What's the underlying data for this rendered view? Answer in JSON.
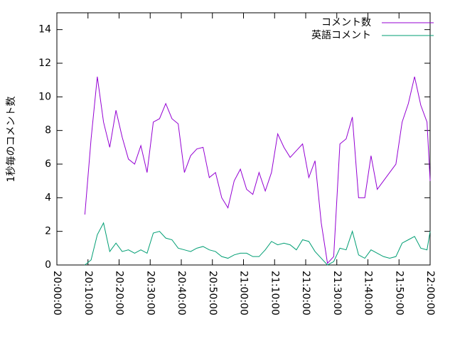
{
  "chart_data": {
    "type": "line",
    "ylabel": "1秒毎のコメント数",
    "legend": "top right",
    "xlim": [
      "20:00:00",
      "22:00:00"
    ],
    "xticks": [
      "20:00:00",
      "20:10:00",
      "20:20:00",
      "20:30:00",
      "20:40:00",
      "20:50:00",
      "21:00:00",
      "21:10:00",
      "21:20:00",
      "21:30:00",
      "21:40:00",
      "21:50:00",
      "22:00:00"
    ],
    "ylim": [
      0,
      15
    ],
    "yticks": [
      0,
      2,
      4,
      6,
      8,
      10,
      12,
      14
    ],
    "x": [
      "20:09:00",
      "20:11:00",
      "20:13:00",
      "20:15:00",
      "20:17:00",
      "20:19:00",
      "20:21:00",
      "20:23:00",
      "20:25:00",
      "20:27:00",
      "20:29:00",
      "20:31:00",
      "20:33:00",
      "20:35:00",
      "20:37:00",
      "20:39:00",
      "20:41:00",
      "20:43:00",
      "20:45:00",
      "20:47:00",
      "20:49:00",
      "20:51:00",
      "20:53:00",
      "20:55:00",
      "20:57:00",
      "20:59:00",
      "21:01:00",
      "21:03:00",
      "21:05:00",
      "21:07:00",
      "21:09:00",
      "21:11:00",
      "21:13:00",
      "21:15:00",
      "21:17:00",
      "21:19:00",
      "21:21:00",
      "21:23:00",
      "21:25:00",
      "21:27:00",
      "21:29:00",
      "21:31:00",
      "21:33:00",
      "21:35:00",
      "21:37:00",
      "21:39:00",
      "21:41:00",
      "21:43:00",
      "21:45:00",
      "21:47:00",
      "21:49:00",
      "21:51:00",
      "21:53:00",
      "21:55:00",
      "21:57:00",
      "21:59:00",
      "22:00:00"
    ],
    "series": [
      {
        "name": "コメント数",
        "color": "#9400d3",
        "values": [
          3.0,
          7.5,
          11.2,
          8.5,
          7.0,
          9.2,
          7.6,
          6.3,
          6.0,
          7.1,
          5.5,
          8.5,
          8.7,
          9.6,
          8.7,
          8.4,
          5.5,
          6.5,
          6.9,
          7.0,
          5.2,
          5.5,
          4.0,
          3.4,
          5.0,
          5.7,
          4.5,
          4.2,
          5.5,
          4.4,
          5.5,
          7.8,
          7.0,
          6.4,
          6.8,
          7.2,
          5.2,
          6.2,
          2.5,
          0.1,
          0.5,
          7.2,
          7.5,
          8.8,
          4.0,
          4.0,
          6.5,
          4.5,
          5.0,
          5.5,
          6.0,
          8.5,
          9.6,
          11.2,
          9.5,
          8.5,
          5.0
        ]
      },
      {
        "name": "英語コメント",
        "color": "#009e73",
        "values": [
          0,
          0.3,
          1.8,
          2.5,
          0.8,
          1.3,
          0.8,
          0.9,
          0.7,
          0.9,
          0.7,
          1.9,
          2.0,
          1.6,
          1.5,
          1.0,
          0.9,
          0.8,
          1.0,
          1.1,
          0.9,
          0.8,
          0.5,
          0.4,
          0.6,
          0.7,
          0.7,
          0.5,
          0.5,
          0.9,
          1.4,
          1.2,
          1.3,
          1.2,
          0.9,
          1.5,
          1.4,
          0.8,
          0.4,
          0,
          0.2,
          1.0,
          0.9,
          2.0,
          0.6,
          0.4,
          0.9,
          0.7,
          0.5,
          0.4,
          0.5,
          1.3,
          1.5,
          1.7,
          1.0,
          0.9,
          2.0
        ]
      }
    ]
  }
}
